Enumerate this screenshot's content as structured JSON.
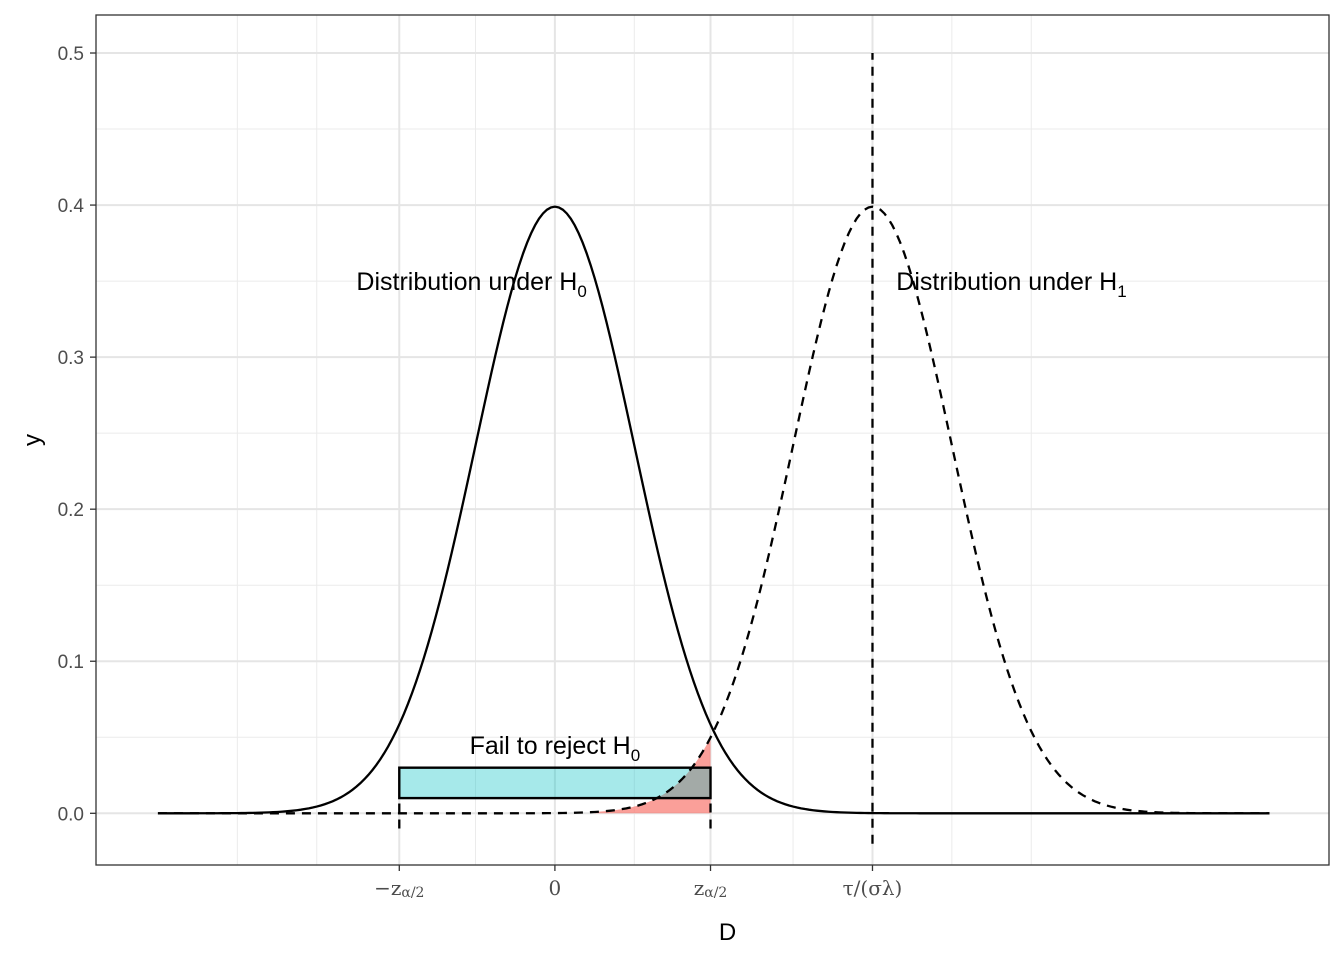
{
  "chart_data": {
    "type": "line",
    "xlabel": "D",
    "ylabel": "y",
    "ylim": [
      -0.034,
      0.525
    ],
    "xlim": [
      -5.78,
      9.75
    ],
    "grid": true,
    "y_ticks": [
      {
        "value": 0.0,
        "label": "0.0"
      },
      {
        "value": 0.1,
        "label": "0.1"
      },
      {
        "value": 0.2,
        "label": "0.2"
      },
      {
        "value": 0.3,
        "label": "0.3"
      },
      {
        "value": 0.4,
        "label": "0.4"
      },
      {
        "value": 0.5,
        "label": "0.5"
      }
    ],
    "x_ticks": [
      {
        "value": -1.96,
        "main": "−z",
        "sub": "α/2"
      },
      {
        "value": 0,
        "main": "0",
        "sub": ""
      },
      {
        "value": 1.96,
        "main": "z",
        "sub": "α/2"
      },
      {
        "value": 4.0,
        "main": "τ/(σλ)",
        "sub": ""
      }
    ],
    "x_minor_grid": [
      -4,
      -3,
      -1,
      1,
      3,
      5,
      6
    ],
    "series": [
      {
        "distribution": "normal",
        "mean": 0,
        "sd": 1,
        "x_range": [
          -5,
          9
        ],
        "style": "solid"
      },
      {
        "distribution": "normal",
        "mean": 4,
        "sd": 1,
        "x_range": [
          -5,
          9
        ],
        "style": "dashed"
      }
    ],
    "vertical_lines": [
      {
        "x": 4.0,
        "y_from": -0.02,
        "y_to": 0.5,
        "style": "dashed"
      },
      {
        "x": -1.96,
        "y_from": -0.01,
        "y_to": 0.01,
        "style": "dashed"
      },
      {
        "x": 1.96,
        "y_from": -0.01,
        "y_to": 0.01,
        "style": "dashed"
      }
    ],
    "shaded_area": {
      "under": "H1 density",
      "x_from": 0.5,
      "x_to": 1.96,
      "color": "#F8766D",
      "opacity": 0.7
    },
    "acceptance_region": {
      "x_from": -1.96,
      "x_to": 1.96,
      "y_from": 0.01,
      "y_to": 0.03,
      "fill": "#00BFC4",
      "opacity": 0.35
    },
    "annotations": [
      {
        "id": "h0",
        "text": "Distribution under H",
        "sub": "0",
        "x": -2.5,
        "y": 0.35,
        "anchor": "start"
      },
      {
        "id": "h1",
        "text": "Distribution under H",
        "sub": "1",
        "x": 4.3,
        "y": 0.35,
        "anchor": "start"
      },
      {
        "id": "fail",
        "text": "Fail to reject H",
        "sub": "0",
        "x": 0,
        "y": 0.045,
        "anchor": "middle"
      }
    ]
  }
}
